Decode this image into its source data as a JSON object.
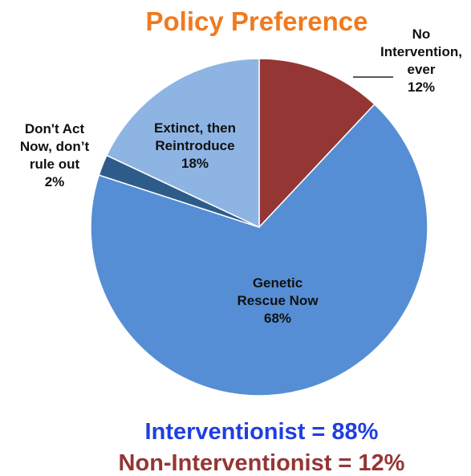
{
  "chart_data": {
    "type": "pie",
    "title": "Policy Preference",
    "slices": [
      {
        "lines": [
          "No",
          "Intervention,",
          "ever"
        ],
        "value": 12,
        "pct_label": "12%",
        "color": "#943634"
      },
      {
        "lines": [
          "Genetic",
          "Rescue Now"
        ],
        "value": 68,
        "pct_label": "68%",
        "color": "#558ED5"
      },
      {
        "lines": [
          "Don't Act",
          "Now, don’t",
          "rule out"
        ],
        "value": 2,
        "pct_label": "2%",
        "color": "#2E5C8A"
      },
      {
        "lines": [
          "Extinct, then",
          "Reintroduce"
        ],
        "value": 18,
        "pct_label": "18%",
        "color": "#8EB4E3"
      }
    ],
    "start_angle_deg": 0,
    "direction": "clockwise"
  },
  "summary": {
    "interventionist": "Interventionist = 88%",
    "interventionist_color": "#1F3FE0",
    "non_interventionist": "Non-Interventionist = 12%",
    "non_interventionist_color": "#943634"
  },
  "colors": {
    "title": "#F07A1F",
    "slice_border": "#ffffff",
    "leader": "#222222"
  }
}
